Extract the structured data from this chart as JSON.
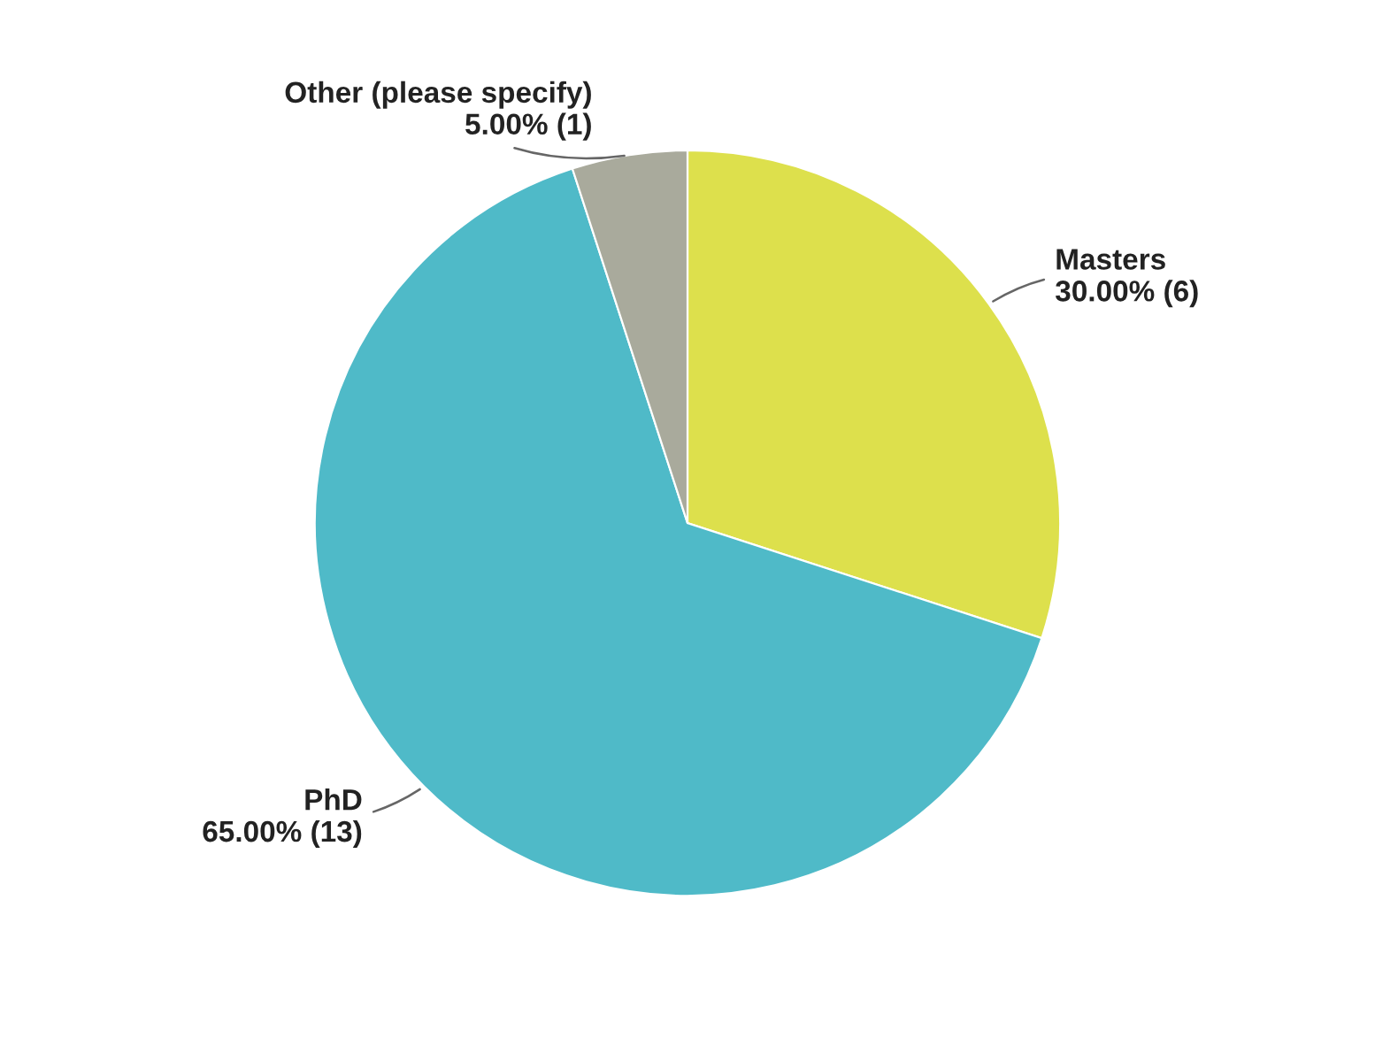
{
  "chart_data": {
    "type": "pie",
    "categories": [
      "Masters",
      "PhD",
      "Other (please specify)"
    ],
    "values": [
      6,
      13,
      1
    ],
    "value_labels": [
      "30.00% (6)",
      "65.00% (13)",
      "5.00% (1)"
    ],
    "colors": [
      "#dde04c",
      "#4fbac8",
      "#a9aa9c"
    ],
    "legend": false
  }
}
